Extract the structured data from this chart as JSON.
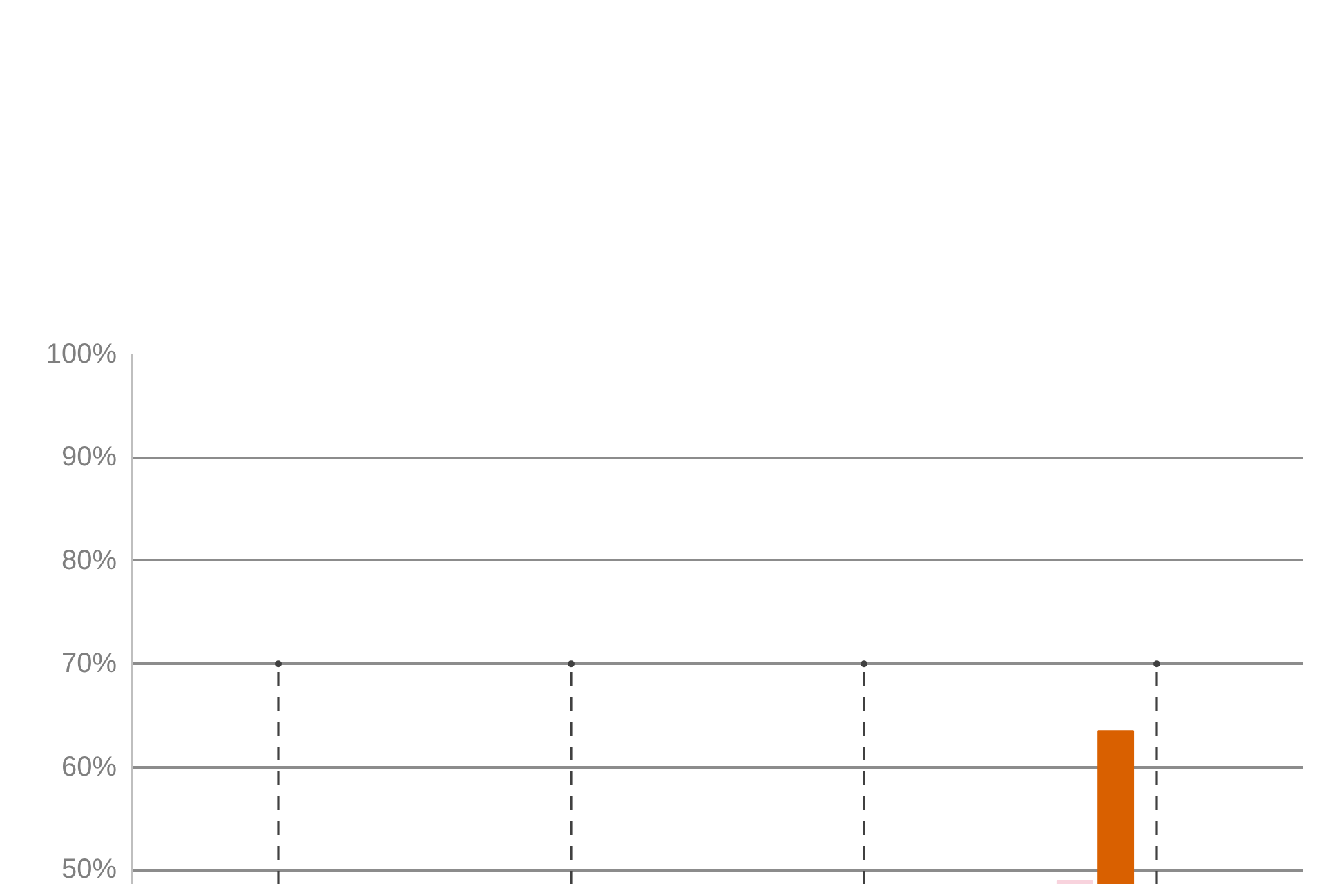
{
  "chart_data": {
    "type": "bar",
    "categories": [
      null,
      null,
      null,
      null
    ],
    "ylim": [
      48.6,
      100
    ],
    "yticks": [
      {
        "value": 50,
        "label": "50%"
      },
      {
        "value": 60,
        "label": "60%"
      },
      {
        "value": 70,
        "label": "70%"
      },
      {
        "value": 80,
        "label": "80%"
      },
      {
        "value": 90,
        "label": "90%"
      },
      {
        "value": 100,
        "label": "100%"
      }
    ],
    "grid": "y",
    "tick_labels": "y",
    "series": [
      {
        "color": "#f8d3dd",
        "values": [
          null,
          null,
          null,
          49.0
        ]
      },
      {
        "color": "#d96000",
        "values": [
          null,
          null,
          null,
          63.5
        ]
      },
      {
        "type": "lollipop",
        "color": "#404040",
        "line_style": "dashed",
        "marker": "circle",
        "values": [
          70,
          70,
          70,
          70
        ]
      }
    ]
  }
}
